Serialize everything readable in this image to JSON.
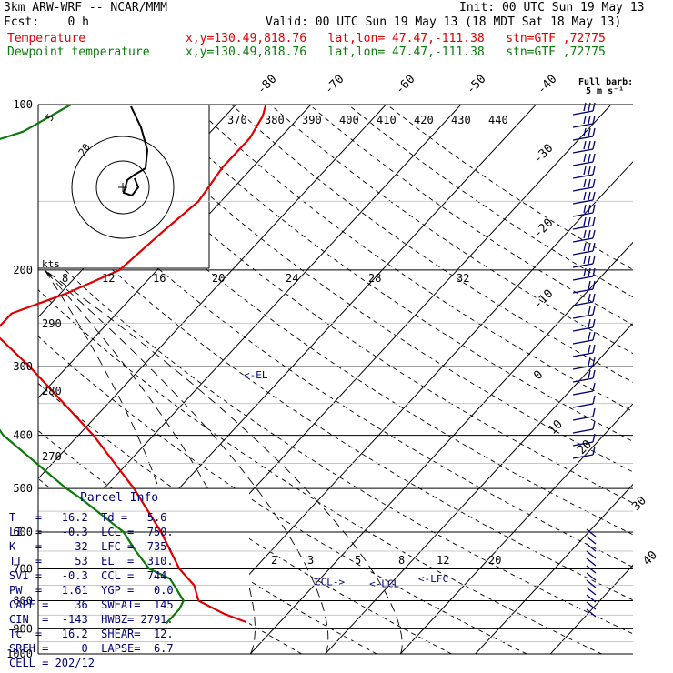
{
  "header": {
    "model": "3km ARW-WRF -- NCAR/MMM",
    "init": "Init: 00 UTC Sun 19 May 13",
    "fcst": "Fcst:    0 h",
    "valid": "Valid: 00 UTC Sun 19 May 13 (18 MDT Sat 18 May 13)",
    "temp_label": "Temperature",
    "dew_label": "Dewpoint temperature",
    "loc_line": "x,y=130.49,818.76   lat,lon= 47.47,-111.38   stn=GTF ,72775"
  },
  "colors": {
    "temperature": "#e00000",
    "dewpoint": "#0a7a0a",
    "annot": "#00007a",
    "grid": "#000000"
  },
  "full_barb": {
    "line1": "Full barb:",
    "line2": "5 m s⁻¹"
  },
  "hodograph": {
    "units": "kts",
    "ring_labels": [
      "5",
      "20"
    ]
  },
  "annotations": {
    "el": "<-EL",
    "ccl": "CCL->",
    "lcl": "<-LCL",
    "lfc": "<-LFC"
  },
  "parcel_info": {
    "title": "Parcel Info",
    "rows": [
      "T   =   16.2  Td =   5.6",
      "LI  =   -0.3  LCL =  750.",
      "K   =     32  LFC =  735.",
      "TT  =     53  EL  =  310.",
      "SVI =   -0.3  CCL =  744.",
      "PW  =   1.61  YGP =   0.0",
      "CAPE =    36  SWEAT=  145",
      "CIN  =  -143  HWBZ= 2791.",
      "Tc  =   16.2  SHEAR=  12.",
      "SREH =     0  LAPSE=  6.7",
      "CELL = 202/12"
    ]
  },
  "chart_data": {
    "type": "line",
    "y_axis": {
      "label": "",
      "scale": "log",
      "ylim": [
        1000,
        100
      ],
      "ticks": [
        100,
        200,
        300,
        400,
        500,
        600,
        700,
        800,
        900,
        1000
      ]
    },
    "isotherm_labels": [
      "-80",
      "-70",
      "-60",
      "-50",
      "-40",
      "-30",
      "-20",
      "-10",
      "0",
      "10",
      "20",
      "30",
      "40"
    ],
    "theta_e_labels": [
      "370",
      "380",
      "390",
      "400",
      "410",
      "420",
      "430",
      "440"
    ],
    "dry_adiabat_labels": [
      "290",
      "280",
      "270"
    ],
    "mixing_ratio_labels_upper": [
      "8",
      "12",
      "16",
      "20",
      "24",
      "28",
      "32"
    ],
    "mixing_ratio_labels_lower": [
      "2",
      "3",
      "5",
      "8",
      "12",
      "20"
    ],
    "series": [
      {
        "name": "Temperature",
        "points": [
          [
            875,
            15.5
          ],
          [
            845,
            11.5
          ],
          [
            800,
            6.5
          ],
          [
            750,
            4
          ],
          [
            700,
            0
          ],
          [
            600,
            -7
          ],
          [
            500,
            -16
          ],
          [
            400,
            -28
          ],
          [
            300,
            -45
          ],
          [
            260,
            -54
          ],
          [
            240,
            -54
          ],
          [
            220,
            -49
          ],
          [
            200,
            -45
          ],
          [
            170,
            -44
          ],
          [
            150,
            -43
          ],
          [
            130,
            -44
          ],
          [
            115,
            -44
          ],
          [
            105,
            -45
          ],
          [
            100,
            -46
          ]
        ]
      },
      {
        "name": "Dewpoint temperature",
        "points": [
          [
            880,
            5
          ],
          [
            830,
            5
          ],
          [
            800,
            4.5
          ],
          [
            760,
            2
          ],
          [
            730,
            0
          ],
          [
            700,
            -4
          ],
          [
            650,
            -8
          ],
          [
            600,
            -12
          ],
          [
            520,
            -22
          ],
          [
            500,
            -25
          ],
          [
            400,
            -40
          ],
          [
            300,
            -55
          ],
          [
            270,
            -64
          ],
          [
            250,
            -67
          ],
          [
            215,
            -70
          ],
          [
            200,
            -72
          ],
          [
            180,
            -80
          ],
          [
            155,
            -97
          ],
          [
            135,
            -88
          ],
          [
            112,
            -75
          ],
          [
            100,
            -72
          ]
        ]
      }
    ],
    "lines": {
      "el": 310,
      "ccl": 744,
      "lcl": 750,
      "lfc": 735
    }
  }
}
